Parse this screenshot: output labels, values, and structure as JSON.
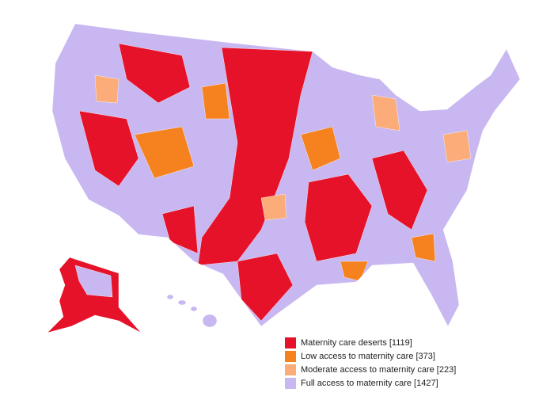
{
  "map": {
    "legend": [
      {
        "label": "Maternity care deserts [1119]",
        "color": "#e5122a"
      },
      {
        "label": "Low access to maternity care [373]",
        "color": "#f5821f"
      },
      {
        "label": "Moderate access to maternity care [223]",
        "color": "#fbac78"
      },
      {
        "label": "Full access to maternity care [1427]",
        "color": "#c8b7f0"
      }
    ]
  }
}
